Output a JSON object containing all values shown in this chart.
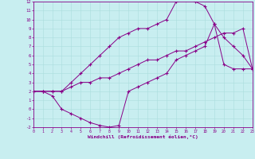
{
  "xlabel": "Windchill (Refroidissement éolien,°C)",
  "xlim": [
    0,
    23
  ],
  "ylim": [
    -2,
    12
  ],
  "xticks": [
    0,
    1,
    2,
    3,
    4,
    5,
    6,
    7,
    8,
    9,
    10,
    11,
    12,
    13,
    14,
    15,
    16,
    17,
    18,
    19,
    20,
    21,
    22,
    23
  ],
  "yticks": [
    -2,
    -1,
    0,
    1,
    2,
    3,
    4,
    5,
    6,
    7,
    8,
    9,
    10,
    11,
    12
  ],
  "bg_color": "#c8eef0",
  "line_color": "#880088",
  "line1_x": [
    0,
    1,
    2,
    3,
    4,
    5,
    6,
    7,
    8,
    9,
    10,
    11,
    12,
    13,
    14,
    15,
    16,
    17,
    18,
    19,
    20,
    21,
    22,
    23
  ],
  "line1_y": [
    2.0,
    2.0,
    2.0,
    2.0,
    2.5,
    3.0,
    3.0,
    3.5,
    3.5,
    4.0,
    4.5,
    5.0,
    5.5,
    5.5,
    6.0,
    6.5,
    6.5,
    7.0,
    7.5,
    8.0,
    8.5,
    8.5,
    9.0,
    4.5
  ],
  "line2_x": [
    0,
    1,
    2,
    3,
    4,
    5,
    6,
    7,
    8,
    9,
    10,
    11,
    12,
    13,
    14,
    15,
    16,
    17,
    18,
    19,
    20,
    21,
    22,
    23
  ],
  "line2_y": [
    2.0,
    2.0,
    2.0,
    2.0,
    3.0,
    4.0,
    5.0,
    6.0,
    7.0,
    8.0,
    8.5,
    9.0,
    9.0,
    9.5,
    10.0,
    12.0,
    12.2,
    12.0,
    11.5,
    9.5,
    5.0,
    4.5,
    4.5,
    4.5
  ],
  "line3_x": [
    0,
    1,
    2,
    3,
    4,
    5,
    6,
    7,
    8,
    9,
    10,
    11,
    12,
    13,
    14,
    15,
    16,
    17,
    18,
    19,
    20,
    21,
    22,
    23
  ],
  "line3_y": [
    2.0,
    2.0,
    1.5,
    0.0,
    -0.5,
    -1.0,
    -1.5,
    -1.8,
    -2.0,
    -1.8,
    2.0,
    2.5,
    3.0,
    3.5,
    4.0,
    5.5,
    6.0,
    6.5,
    7.0,
    9.5,
    8.0,
    7.0,
    6.0,
    4.5
  ],
  "figsize": [
    3.2,
    2.0
  ],
  "dpi": 100
}
